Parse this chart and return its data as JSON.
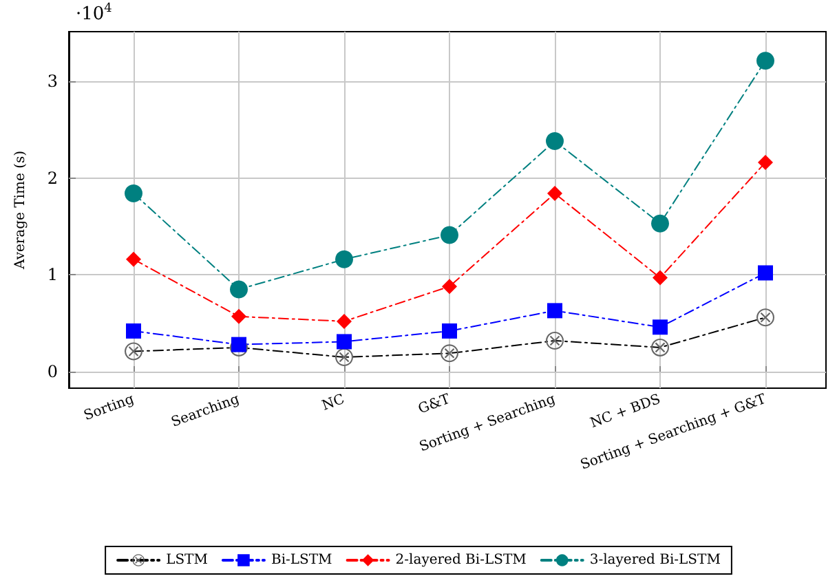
{
  "chart_data": {
    "type": "line",
    "ylabel": "Average Time (s)",
    "annotations": [
      "·10$^{4}$"
    ],
    "categories": [
      "Sorting",
      "Searching",
      "NC",
      "G&T",
      "Sorting + Searching",
      "NC + BDS",
      "Sorting + Searching + G&T"
    ],
    "series": [
      {
        "name": "LSTM",
        "color": "#000000",
        "marker": "cross",
        "values": [
          0.21,
          0.25,
          0.15,
          0.19,
          0.32,
          0.25,
          0.56
        ]
      },
      {
        "name": "Bi-LSTM",
        "color": "#0000ff",
        "marker": "square",
        "values": [
          0.42,
          0.28,
          0.31,
          0.42,
          0.63,
          0.46,
          1.02
        ]
      },
      {
        "name": "2-layered Bi-LSTM",
        "color": "#ff0000",
        "marker": "diamond",
        "values": [
          1.16,
          0.57,
          0.52,
          0.88,
          1.84,
          0.97,
          2.16
        ]
      },
      {
        "name": "3-layered Bi-LSTM",
        "color": "#008080",
        "marker": "circle",
        "values": [
          1.84,
          0.85,
          1.16,
          1.41,
          2.38,
          1.53,
          3.21
        ]
      }
    ],
    "ylim": [
      -0.17,
      3.51
    ],
    "yticks": [
      0,
      1,
      2,
      3
    ],
    "grid": true,
    "legend": "bottom",
    "line_style": "dashed"
  }
}
